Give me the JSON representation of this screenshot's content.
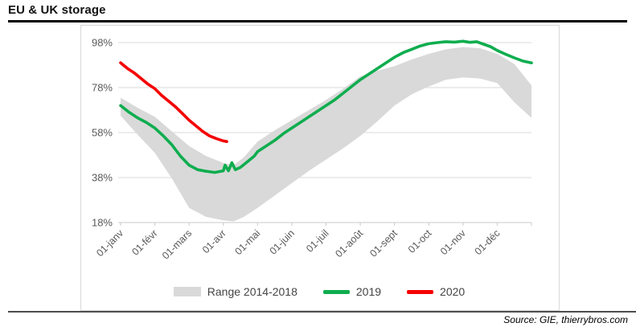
{
  "page": {
    "title": "EU & UK storage",
    "source": "Source: GIE, thierrybros.com"
  },
  "colors": {
    "band": "#d9d9d9",
    "green_2019": "#0fad4f",
    "red_2020": "#f40404",
    "gridline": "#d9d9d9",
    "axis": "#c9c9c9",
    "axis_text": "#595959",
    "legend_text": "#444444"
  },
  "chart_data": {
    "type": "line",
    "title": "EU & UK storage",
    "xlabel": "",
    "ylabel": "",
    "grid": true,
    "x_axis": {
      "categories": [
        "01-janv",
        "01-févr",
        "01-mars",
        "01-avr",
        "01-mai",
        "01-juin",
        "01-juil",
        "01-août",
        "01-sept",
        "01-oct",
        "01-nov",
        "01-déc"
      ],
      "label_rotation": -45
    },
    "y_axis": {
      "ticks": [
        "98%",
        "78%",
        "58%",
        "38%",
        "18%"
      ],
      "tick_values": [
        98,
        78,
        58,
        38,
        18
      ],
      "min": 18,
      "max": 98,
      "unit": "%"
    },
    "legend": {
      "position": "bottom",
      "entries": [
        {
          "label": "Range 2014-2018",
          "type": "band",
          "color": "#d9d9d9"
        },
        {
          "label": "2019",
          "type": "line",
          "color": "#0fad4f"
        },
        {
          "label": "2020",
          "type": "line",
          "color": "#f40404"
        }
      ]
    },
    "series": [
      {
        "name": "Range 2014-2018",
        "type": "band",
        "color": "#d9d9d9",
        "points_x_top_bottom": [
          [
            0,
            73.5,
            65.5
          ],
          [
            0.5,
            69,
            57
          ],
          [
            1,
            65,
            49
          ],
          [
            1.5,
            58.5,
            37.5
          ],
          [
            2,
            52,
            24.5
          ],
          [
            2.5,
            47.5,
            20.5
          ],
          [
            3,
            44.5,
            19
          ],
          [
            3.3,
            43.5,
            18.5
          ],
          [
            3.6,
            47,
            20.5
          ],
          [
            3.8,
            50.5,
            22.5
          ],
          [
            4,
            54,
            24.5
          ],
          [
            4.5,
            59,
            30
          ],
          [
            5,
            63.5,
            35.5
          ],
          [
            5.5,
            68,
            41
          ],
          [
            6,
            72.5,
            46
          ],
          [
            6.5,
            77.5,
            51
          ],
          [
            7,
            83,
            56.5
          ],
          [
            7.5,
            85.5,
            63
          ],
          [
            8,
            87.5,
            70
          ],
          [
            8.5,
            90.5,
            75
          ],
          [
            9,
            93,
            78.5
          ],
          [
            9.5,
            95,
            81.5
          ],
          [
            10,
            96,
            82.5
          ],
          [
            10.5,
            95.5,
            82
          ],
          [
            11,
            93,
            80
          ],
          [
            11.5,
            88.5,
            71.5
          ],
          [
            12,
            79,
            64.5
          ]
        ]
      },
      {
        "name": "2019",
        "type": "line",
        "color": "#0fad4f",
        "points": [
          [
            0,
            70
          ],
          [
            0.25,
            67
          ],
          [
            0.5,
            64.5
          ],
          [
            0.75,
            62.5
          ],
          [
            1,
            60
          ],
          [
            1.25,
            56.5
          ],
          [
            1.5,
            52.5
          ],
          [
            1.75,
            47.5
          ],
          [
            2,
            43.5
          ],
          [
            2.25,
            41.5
          ],
          [
            2.5,
            40.8
          ],
          [
            2.75,
            40.3
          ],
          [
            3,
            41
          ],
          [
            3.05,
            43.5
          ],
          [
            3.15,
            41
          ],
          [
            3.25,
            44.6
          ],
          [
            3.35,
            41.5
          ],
          [
            3.5,
            42.5
          ],
          [
            3.7,
            45
          ],
          [
            3.9,
            47.5
          ],
          [
            4,
            49.5
          ],
          [
            4.25,
            52
          ],
          [
            4.5,
            54.5
          ],
          [
            4.75,
            57.5
          ],
          [
            5,
            60
          ],
          [
            5.25,
            62.5
          ],
          [
            5.5,
            65
          ],
          [
            5.75,
            67.5
          ],
          [
            6,
            70
          ],
          [
            6.25,
            72.5
          ],
          [
            6.5,
            75.5
          ],
          [
            6.75,
            78.5
          ],
          [
            7,
            81.5
          ],
          [
            7.25,
            84
          ],
          [
            7.5,
            86.5
          ],
          [
            7.75,
            89
          ],
          [
            8,
            91.5
          ],
          [
            8.25,
            93.5
          ],
          [
            8.5,
            95
          ],
          [
            8.75,
            96.5
          ],
          [
            9,
            97.5
          ],
          [
            9.25,
            98
          ],
          [
            9.5,
            98.4
          ],
          [
            9.75,
            98.2
          ],
          [
            10,
            98.6
          ],
          [
            10.2,
            98.1
          ],
          [
            10.4,
            98.4
          ],
          [
            10.6,
            97.3
          ],
          [
            10.8,
            96.2
          ],
          [
            11,
            94.5
          ],
          [
            11.25,
            92.8
          ],
          [
            11.5,
            91.2
          ],
          [
            11.75,
            89.8
          ],
          [
            12,
            89
          ]
        ]
      },
      {
        "name": "2020",
        "type": "line",
        "color": "#f40404",
        "points": [
          [
            0,
            89
          ],
          [
            0.2,
            86.5
          ],
          [
            0.4,
            84.5
          ],
          [
            0.6,
            82
          ],
          [
            0.8,
            79.5
          ],
          [
            1,
            77.5
          ],
          [
            1.2,
            74.5
          ],
          [
            1.4,
            72
          ],
          [
            1.6,
            69.5
          ],
          [
            1.8,
            66.5
          ],
          [
            2,
            63.5
          ],
          [
            2.2,
            61
          ],
          [
            2.4,
            58.5
          ],
          [
            2.6,
            56.5
          ],
          [
            2.8,
            55.3
          ],
          [
            3,
            54.3
          ],
          [
            3.1,
            54
          ]
        ]
      }
    ]
  }
}
